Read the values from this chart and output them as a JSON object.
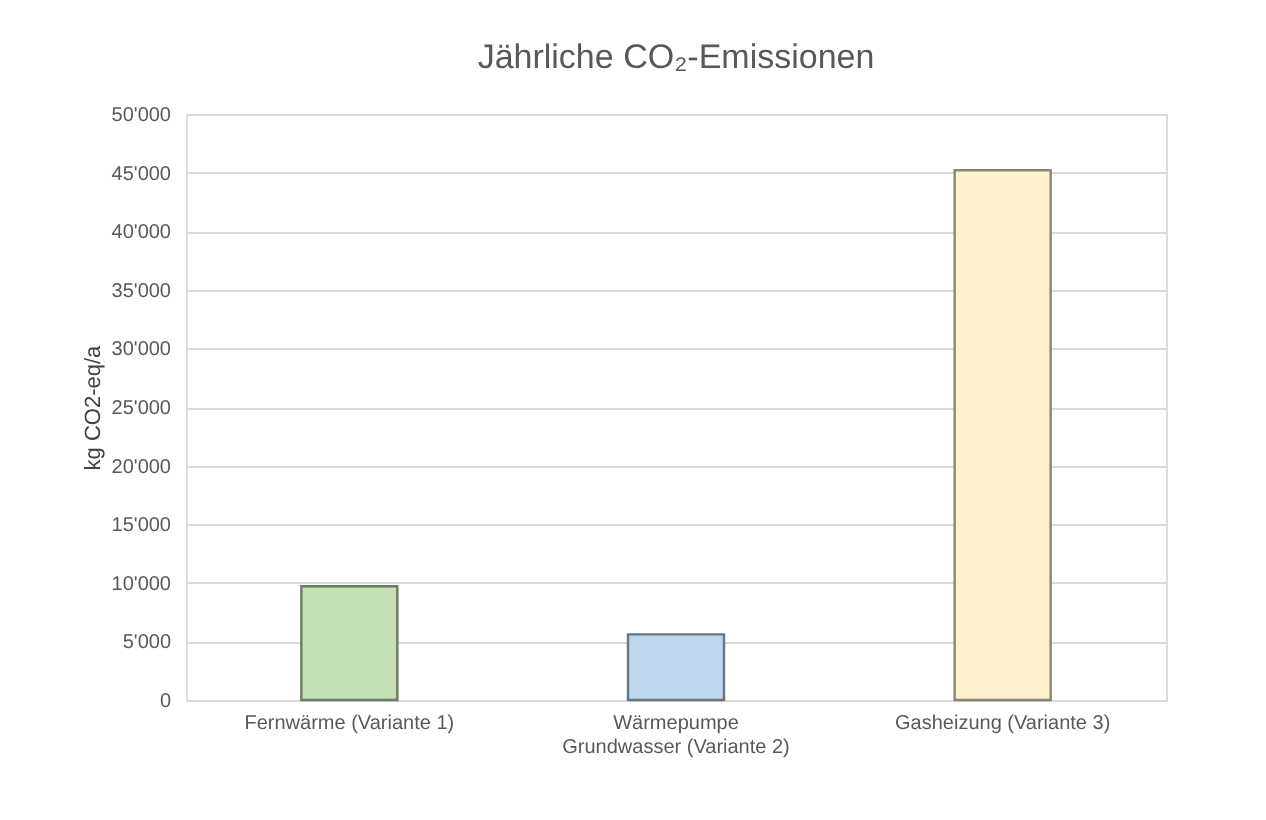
{
  "chart_data": {
    "type": "bar",
    "title": "Jährliche CO₂-Emissionen",
    "ylabel": "kg CO2-eq/a",
    "categories": [
      "Fernwärme (Variante 1)",
      "Wärmepumpe Grundwasser (Variante 2)",
      "Gasheizung (Variante 3)"
    ],
    "values": [
      9700,
      5600,
      45200
    ],
    "colors": [
      "#c5e0b4",
      "#bdd7ee",
      "#fff2cc"
    ],
    "ylim": [
      0,
      50000
    ],
    "yticks": [
      0,
      {
        "value": 5000,
        "label": "5'000"
      },
      {
        "value": 10000,
        "label": "10'000"
      },
      {
        "value": 15000,
        "label": "15'000"
      },
      {
        "value": 20000,
        "label": "20'000"
      },
      {
        "value": 25000,
        "label": "25'000"
      },
      {
        "value": 30000,
        "label": "30'000"
      },
      {
        "value": 35000,
        "label": "35'000"
      },
      {
        "value": 40000,
        "label": "40'000"
      },
      {
        "value": 45000,
        "label": "45'000"
      },
      {
        "value": 50000,
        "label": "50'000"
      }
    ],
    "grid": "y"
  }
}
